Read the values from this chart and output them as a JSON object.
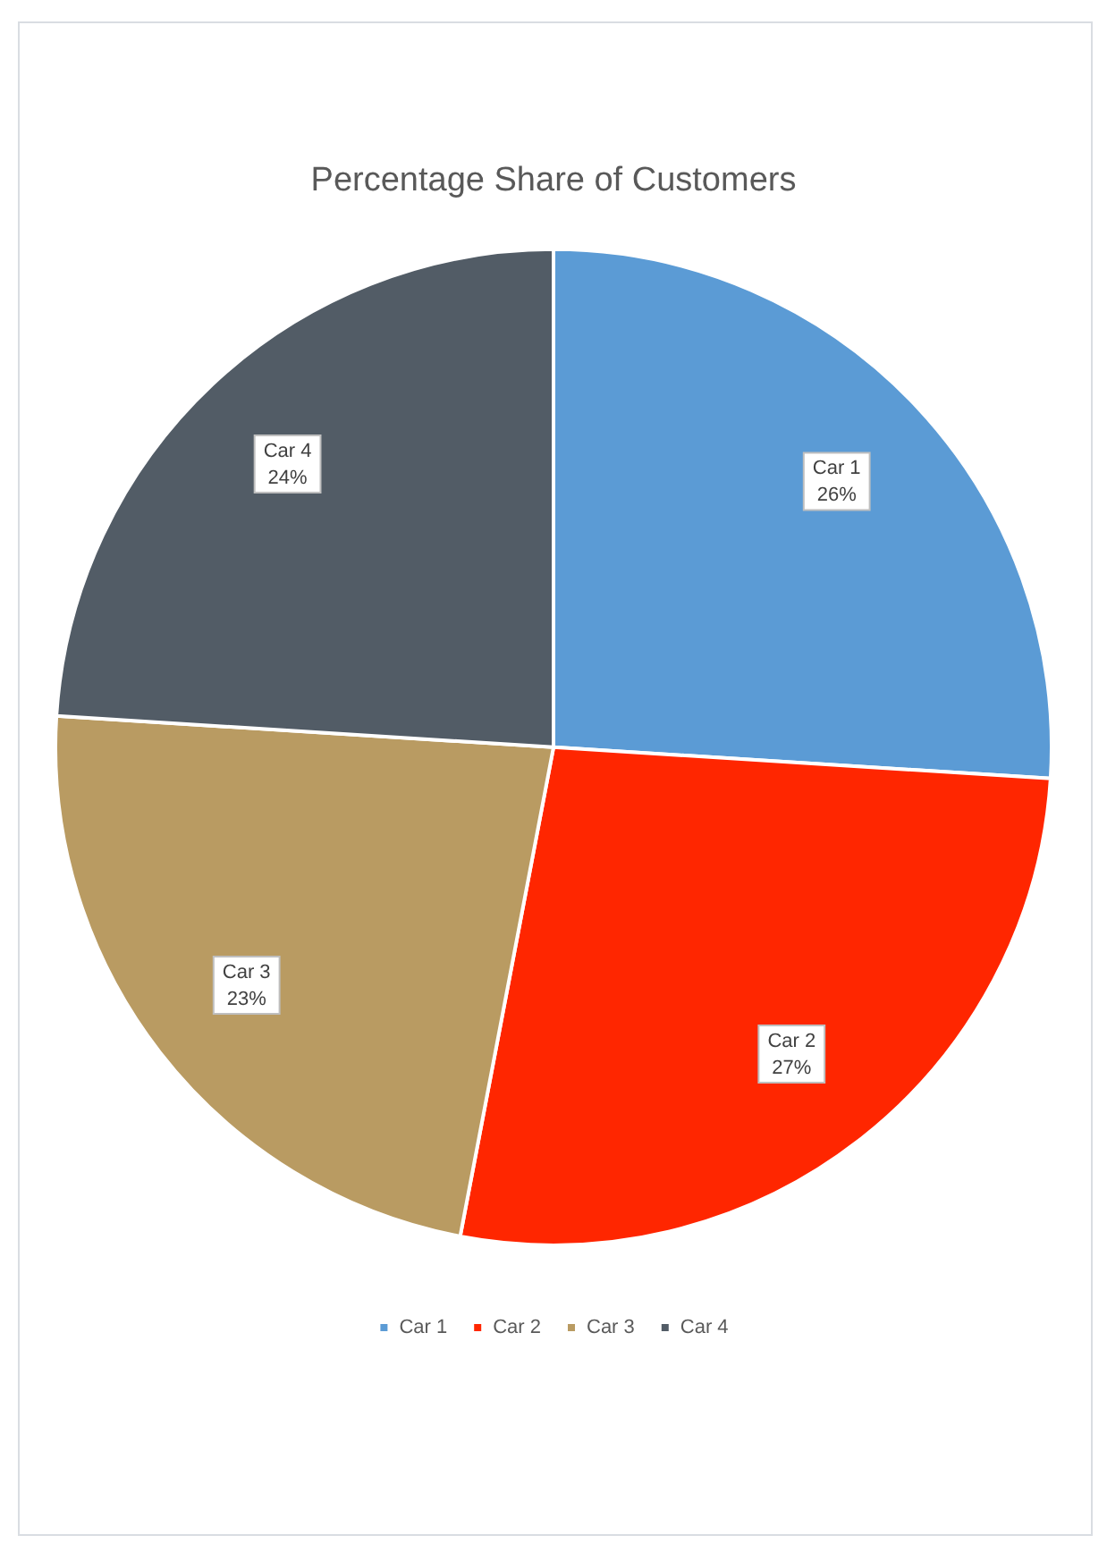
{
  "chart_data": {
    "type": "pie",
    "title": "Percentage Share of Customers",
    "categories": [
      "Car 1",
      "Car 2",
      "Car 3",
      "Car 4"
    ],
    "values": [
      26,
      27,
      23,
      24
    ],
    "colors": [
      "#5b9bd5",
      "#ff2600",
      "#b99b62",
      "#525c66"
    ],
    "value_labels": [
      "26%",
      "27%",
      "23%",
      "24%"
    ],
    "legend": "bottom"
  }
}
